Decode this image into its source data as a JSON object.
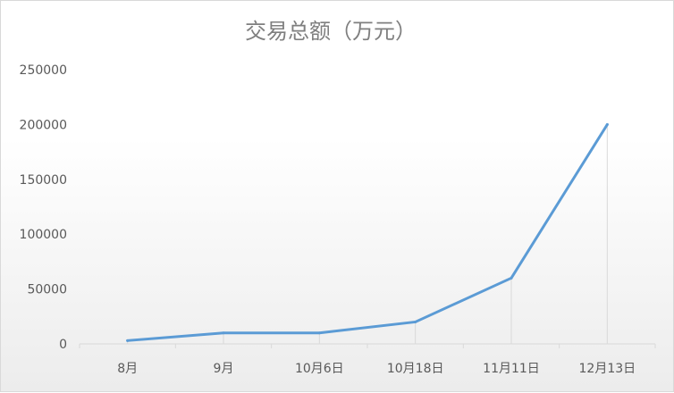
{
  "chart_data": {
    "type": "line",
    "title": "交易总额（万元）",
    "categories": [
      "8月",
      "9月",
      "10月6日",
      "10月18日",
      "11月11日",
      "12月13日"
    ],
    "series": [
      {
        "values": [
          3000,
          10000,
          10000,
          20000,
          60000,
          200000
        ]
      }
    ],
    "ylim": [
      0,
      250000
    ],
    "yticks": [
      "0",
      "50000",
      "100000",
      "150000",
      "200000",
      "250000"
    ],
    "grid": false,
    "legend": "none",
    "drop_lines": true,
    "colors": {
      "line": "#5b9bd5",
      "axis": "#d9d9d9",
      "drop_line": "#d9d9d9"
    }
  }
}
